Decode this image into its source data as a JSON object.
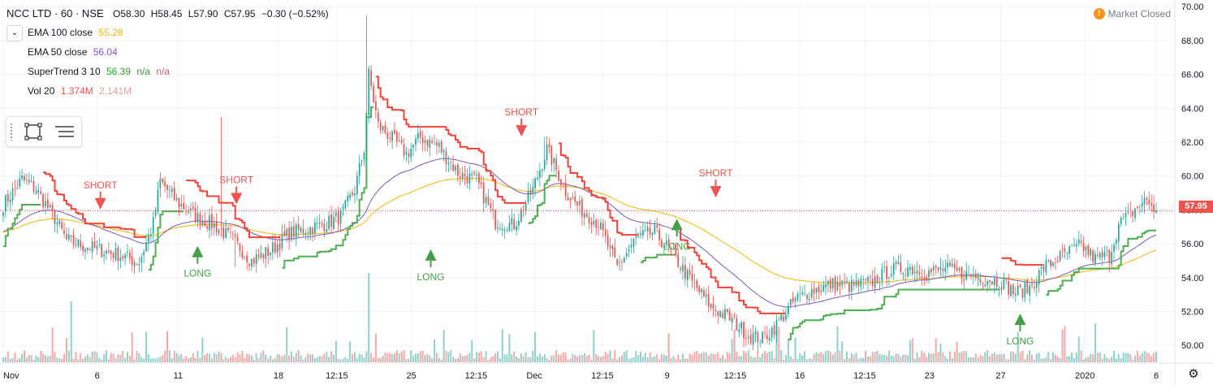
{
  "header": {
    "symbol": "NCC LTD · 60 · NSE",
    "ohlc": [
      {
        "key": "O",
        "value": "58.30"
      },
      {
        "key": "H",
        "value": "58.45"
      },
      {
        "key": "L",
        "value": "57.90"
      },
      {
        "key": "C",
        "value": "57.95"
      }
    ],
    "change": "−0.30 (−0.52%)",
    "market_status": "Market Closed",
    "market_status_icon": "!"
  },
  "indicators": [
    {
      "name": "EMA 100 close",
      "values": [
        "55.28"
      ],
      "colors": [
        "#f7b500"
      ]
    },
    {
      "name": "EMA 50 close",
      "values": [
        "56.04"
      ],
      "colors": [
        "#7e57c2"
      ]
    },
    {
      "name": "SuperTrend 3 10",
      "values": [
        "56.39",
        "n/a",
        "n/a"
      ],
      "colors": [
        "#26a626",
        "#26a626",
        "#ef5350"
      ]
    },
    {
      "name": "Vol 20",
      "values": [
        "1.374M",
        "2.141M"
      ],
      "colors": [
        "#ef5350",
        "#ef9a9a"
      ]
    }
  ],
  "collapse_icon": "chevron-down-icon",
  "tools": [
    {
      "name": "rectangle-tool-icon"
    },
    {
      "name": "object-tree-icon"
    }
  ],
  "last_price": "57.95",
  "colors": {
    "up": "#26a69a",
    "down": "#ef5350",
    "supertrend_up": "#4caf50",
    "supertrend_down": "#f44336",
    "ema100": "#f7b500",
    "ema50": "#7e57c2"
  },
  "chart_data": {
    "type": "candlestick",
    "title": "NCC LTD · 60 · NSE",
    "y_axis": {
      "ticks": [
        "50.00",
        "52.00",
        "54.00",
        "56.00",
        "58.00",
        "60.00",
        "62.00",
        "64.00",
        "66.00",
        "68.00",
        "70.00"
      ],
      "ylim": [
        49.0,
        70.2
      ]
    },
    "x_axis": {
      "ticks": [
        "Nov",
        "6",
        "11",
        "18",
        "12:15",
        "25",
        "12:15",
        "Dec",
        "12:15",
        "9",
        "12:15",
        "16",
        "12:15",
        "23",
        "27",
        "2020",
        "6"
      ]
    },
    "anchors": [
      [
        0,
        58.3
      ],
      [
        8,
        59.8
      ],
      [
        14,
        59.2
      ],
      [
        22,
        57.5
      ],
      [
        27,
        56.2
      ],
      [
        34,
        55.9
      ],
      [
        42,
        55.6
      ],
      [
        50,
        55.3
      ],
      [
        58,
        54.9
      ],
      [
        64,
        57.2
      ],
      [
        67,
        59.7
      ],
      [
        74,
        58.5
      ],
      [
        82,
        57.6
      ],
      [
        90,
        57.1
      ],
      [
        98,
        56.2
      ],
      [
        106,
        55.0
      ],
      [
        114,
        55.6
      ],
      [
        122,
        56.6
      ],
      [
        130,
        56.9
      ],
      [
        138,
        57.2
      ],
      [
        144,
        57.6
      ],
      [
        150,
        59.2
      ],
      [
        154,
        61.6
      ],
      [
        156,
        66.0
      ],
      [
        160,
        63.0
      ],
      [
        166,
        62.2
      ],
      [
        172,
        61.3
      ],
      [
        178,
        62.3
      ],
      [
        186,
        61.7
      ],
      [
        194,
        60.2
      ],
      [
        202,
        59.7
      ],
      [
        210,
        57.3
      ],
      [
        218,
        57.1
      ],
      [
        226,
        59.2
      ],
      [
        232,
        61.6
      ],
      [
        240,
        59.1
      ],
      [
        246,
        58.1
      ],
      [
        254,
        57.2
      ],
      [
        262,
        54.6
      ],
      [
        270,
        56.3
      ],
      [
        278,
        56.7
      ],
      [
        286,
        55.3
      ],
      [
        294,
        53.7
      ],
      [
        302,
        52.3
      ],
      [
        310,
        51.6
      ],
      [
        318,
        50.6
      ],
      [
        324,
        50.4
      ],
      [
        330,
        51.2
      ],
      [
        338,
        52.7
      ],
      [
        346,
        53.3
      ],
      [
        354,
        53.6
      ],
      [
        362,
        53.5
      ],
      [
        370,
        53.7
      ],
      [
        378,
        54.4
      ],
      [
        386,
        54.6
      ],
      [
        394,
        54.3
      ],
      [
        402,
        54.5
      ],
      [
        410,
        54.2
      ],
      [
        418,
        54.0
      ],
      [
        426,
        53.7
      ],
      [
        432,
        53.1
      ],
      [
        438,
        53.4
      ],
      [
        444,
        54.6
      ],
      [
        452,
        55.3
      ],
      [
        460,
        55.9
      ],
      [
        466,
        55.1
      ],
      [
        472,
        55.3
      ],
      [
        476,
        57.1
      ],
      [
        482,
        57.9
      ],
      [
        488,
        58.6
      ],
      [
        492,
        57.95
      ]
    ],
    "series": [
      {
        "name": "EMA 100 close",
        "last": 55.28
      },
      {
        "name": "EMA 50 close",
        "last": 56.04
      },
      {
        "name": "SuperTrend 3 10",
        "last": 56.39
      },
      {
        "name": "Vol 20",
        "last": "1.374M",
        "avg": "2.141M"
      }
    ],
    "signals": [
      {
        "label": "SHORT",
        "i": 30,
        "price": 58.7,
        "dir": "down"
      },
      {
        "label": "LONG",
        "i": 60,
        "price": 55.2,
        "dir": "up"
      },
      {
        "label": "SHORT",
        "i": 72,
        "price": 59.0,
        "dir": "down"
      },
      {
        "label": "LONG",
        "i": 132,
        "price": 55.0,
        "dir": "up"
      },
      {
        "label": "SHORT",
        "i": 160,
        "price": 63.0,
        "dir": "down"
      },
      {
        "label": "LONG",
        "i": 208,
        "price": 56.8,
        "dir": "up"
      },
      {
        "label": "SHORT",
        "i": 220,
        "price": 59.4,
        "dir": "down"
      },
      {
        "label": "LONG",
        "i": 314,
        "price": 51.2,
        "dir": "up"
      }
    ],
    "last_value": 57.95
  }
}
